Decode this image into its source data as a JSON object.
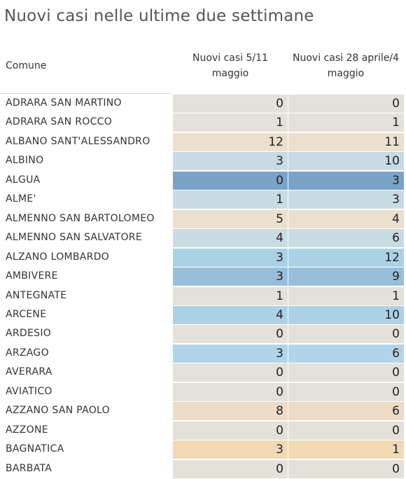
{
  "title": "Nuovi casi nelle ultime due settimane",
  "chart_data": {
    "type": "table",
    "columns": [
      "Comune",
      "Nuovi casi  5/11\nmaggio",
      "Nuovi casi 28 aprile/4\nmaggio"
    ],
    "rows": [
      {
        "comune": "ADRARA SAN MARTINO",
        "v1": 0,
        "v2": 0,
        "color": "#e4e1da"
      },
      {
        "comune": "ADRARA SAN ROCCO",
        "v1": 1,
        "v2": 1,
        "color": "#e4e1da"
      },
      {
        "comune": "ALBANO SANT'ALESSANDRO",
        "v1": 12,
        "v2": 11,
        "color": "#ebdfcd"
      },
      {
        "comune": "ALBINO",
        "v1": 3,
        "v2": 10,
        "color": "#c8dbe2"
      },
      {
        "comune": "ALGUA",
        "v1": 0,
        "v2": 3,
        "color": "#7ba3c8"
      },
      {
        "comune": "ALME'",
        "v1": 1,
        "v2": 3,
        "color": "#c8dbe2"
      },
      {
        "comune": "ALMENNO SAN BARTOLOMEO",
        "v1": 5,
        "v2": 4,
        "color": "#ebdfcd"
      },
      {
        "comune": "ALMENNO SAN SALVATORE",
        "v1": 4,
        "v2": 6,
        "color": "#c8dbe2"
      },
      {
        "comune": "ALZANO LOMBARDO",
        "v1": 3,
        "v2": 12,
        "color": "#acd1e6"
      },
      {
        "comune": "AMBIVERE",
        "v1": 3,
        "v2": 9,
        "color": "#97bfdc"
      },
      {
        "comune": "ANTEGNATE",
        "v1": 1,
        "v2": 1,
        "color": "#e4e1da"
      },
      {
        "comune": "ARCENE",
        "v1": 4,
        "v2": 10,
        "color": "#acd1e6"
      },
      {
        "comune": "ARDESIO",
        "v1": 0,
        "v2": 0,
        "color": "#e4e1da"
      },
      {
        "comune": "ARZAGO",
        "v1": 3,
        "v2": 6,
        "color": "#b3d4e8"
      },
      {
        "comune": "AVERARA",
        "v1": 0,
        "v2": 0,
        "color": "#e4e1da"
      },
      {
        "comune": "AVIATICO",
        "v1": 0,
        "v2": 0,
        "color": "#e4e1da"
      },
      {
        "comune": "AZZANO SAN PAOLO",
        "v1": 8,
        "v2": 6,
        "color": "#ecdbc5"
      },
      {
        "comune": "AZZONE",
        "v1": 0,
        "v2": 0,
        "color": "#e4e1da"
      },
      {
        "comune": "BAGNATICA",
        "v1": 3,
        "v2": 1,
        "color": "#f1d9b5"
      },
      {
        "comune": "BARBATA",
        "v1": 0,
        "v2": 0,
        "color": "#e4e1da"
      }
    ]
  }
}
